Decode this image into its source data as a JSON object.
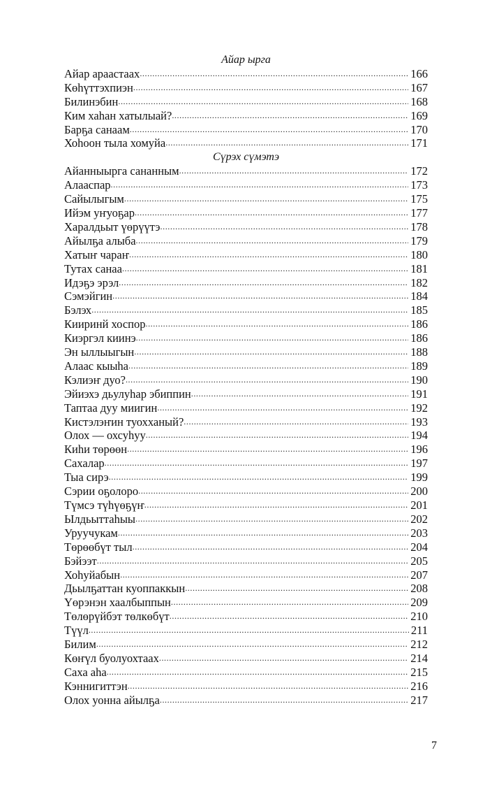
{
  "sections": [
    {
      "heading": "Айар ырга",
      "entries": [
        {
          "title": "Айар араастаах ",
          "page": "166"
        },
        {
          "title": "Көһүттэхпиэн",
          "page": "167"
        },
        {
          "title": "Билинэбин",
          "page": "168"
        },
        {
          "title": "Ким хаһан хатылыай? ",
          "page": "169"
        },
        {
          "title": "Барҕа санаам ",
          "page": "170"
        },
        {
          "title": "Хоһоон тыла хомуйа",
          "page": "171"
        }
      ]
    },
    {
      "heading": "Сүрэх сүмэтэ",
      "entries": [
        {
          "title": "Айанныырга сананным ",
          "page": "172"
        },
        {
          "title": "Алааспар",
          "page": "173"
        },
        {
          "title": "Сайылыгым ",
          "page": "175"
        },
        {
          "title": "Ийэм уҥуоҕар ",
          "page": "177"
        },
        {
          "title": "Харалдьыт үөрүүтэ ",
          "page": "178"
        },
        {
          "title": "Айылҕа алыба",
          "page": "179"
        },
        {
          "title": "Хатыҥ чараҥ ",
          "page": "180"
        },
        {
          "title": "Тутах санаа",
          "page": "181"
        },
        {
          "title": "Идэҕэ эрэл",
          "page": "182"
        },
        {
          "title": "Сэмэйгин",
          "page": "184"
        },
        {
          "title": "Бэлэх",
          "page": "185"
        },
        {
          "title": "Кииринй хоспор ",
          "page": "186"
        },
        {
          "title": "Киэргэл киинэ",
          "page": "186"
        },
        {
          "title": "Эн ыллыыгын ",
          "page": "188"
        },
        {
          "title": "Алаас кыыһа  ",
          "page": "189"
        },
        {
          "title": "Кэлиэҥ дуо?",
          "page": "190"
        },
        {
          "title": "Эйиэхэ дьулуһар эбиппин ",
          "page": "191"
        },
        {
          "title": "Таптаа дуу миигин",
          "page": "192"
        },
        {
          "title": "Кистэлэҥин туохханый? ",
          "page": "193"
        },
        {
          "title": "Олох — охсуһуу",
          "page": "194"
        },
        {
          "title": "Киһи төрөөн",
          "page": "196"
        },
        {
          "title": "Сахалар ",
          "page": "197"
        },
        {
          "title": "Тыа сирэ",
          "page": "199"
        },
        {
          "title": "Сэрии оҕолоро ",
          "page": "200"
        },
        {
          "title": "Түмсэ түһүөҕүҥ ",
          "page": "201"
        },
        {
          "title": "Ылдьыттаһыы",
          "page": "202"
        },
        {
          "title": "Уруучукам",
          "page": "203"
        },
        {
          "title": "Төрөөбүт тыл",
          "page": "204"
        },
        {
          "title": "Бэйээт",
          "page": "205"
        },
        {
          "title": "Хоһуйабын ",
          "page": "207"
        },
        {
          "title": "Дьылҕаттан куоппаккын ",
          "page": "208"
        },
        {
          "title": "Үөрэнэн хаалбыппын",
          "page": "209"
        },
        {
          "title": "Төлөрүйбэт төлкөбүт ",
          "page": "210"
        },
        {
          "title": "Түүл ",
          "page": "211"
        },
        {
          "title": "Билим ",
          "page": "212"
        },
        {
          "title": "Көҥүл буолуохтаах ",
          "page": "214"
        },
        {
          "title": "Саха аһа",
          "page": "215"
        },
        {
          "title": "Кэннигиттэн ",
          "page": "216"
        },
        {
          "title": "Олох уонна айылҕа ",
          "page": "217"
        }
      ]
    }
  ],
  "page_number": "7"
}
